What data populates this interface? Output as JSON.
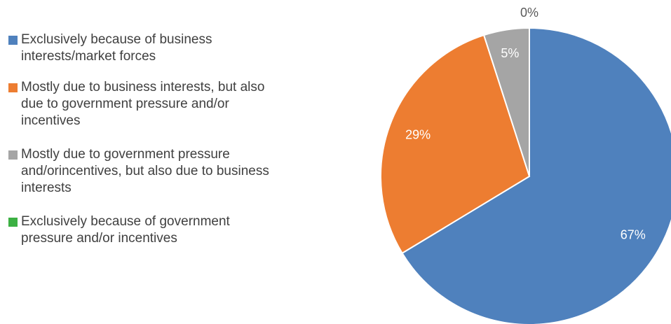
{
  "chart_data": {
    "type": "pie",
    "slices": [
      {
        "label": "Exclusively because of business interests/market forces",
        "value": 67,
        "display": "67%",
        "color": "#4f81bd",
        "label_color": "#ffffff"
      },
      {
        "label": "Mostly due to business interests, but also due to government pressure and/or incentives",
        "value": 29,
        "display": "29%",
        "color": "#ed7d31",
        "label_color": "#ffffff"
      },
      {
        "label": "Mostly due to government pressure and/orincentives, but also due to business interests",
        "value": 5,
        "display": "5%",
        "color": "#a5a5a5",
        "label_color": "#ffffff"
      },
      {
        "label": "Exclusively because of government pressure and/or incentives",
        "value": 0,
        "display": "0%",
        "color": "#3cb043",
        "label_color": "#595959"
      }
    ],
    "start_angle_deg": 0,
    "direction": "clockwise",
    "legend_position": "left"
  }
}
